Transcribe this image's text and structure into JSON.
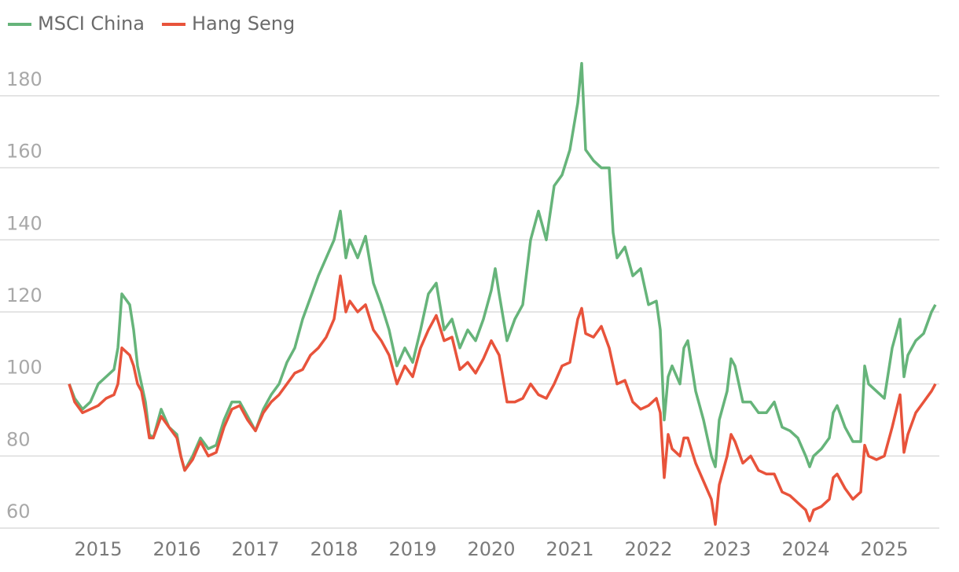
{
  "chart_data": {
    "type": "line",
    "x": [
      2014.63,
      2014.7,
      2014.8,
      2014.9,
      2015.0,
      2015.1,
      2015.2,
      2015.25,
      2015.3,
      2015.4,
      2015.45,
      2015.5,
      2015.55,
      2015.6,
      2015.65,
      2015.7,
      2015.8,
      2015.9,
      2016.0,
      2016.05,
      2016.1,
      2016.2,
      2016.3,
      2016.4,
      2016.5,
      2016.6,
      2016.7,
      2016.8,
      2016.9,
      2017.0,
      2017.1,
      2017.2,
      2017.3,
      2017.4,
      2017.5,
      2017.6,
      2017.7,
      2017.8,
      2017.9,
      2018.0,
      2018.08,
      2018.15,
      2018.2,
      2018.3,
      2018.4,
      2018.5,
      2018.6,
      2018.7,
      2018.8,
      2018.9,
      2019.0,
      2019.1,
      2019.2,
      2019.3,
      2019.4,
      2019.5,
      2019.6,
      2019.7,
      2019.8,
      2019.9,
      2020.0,
      2020.05,
      2020.1,
      2020.2,
      2020.3,
      2020.4,
      2020.5,
      2020.6,
      2020.7,
      2020.8,
      2020.9,
      2021.0,
      2021.1,
      2021.15,
      2021.2,
      2021.3,
      2021.4,
      2021.5,
      2021.55,
      2021.6,
      2021.7,
      2021.8,
      2021.9,
      2022.0,
      2022.1,
      2022.15,
      2022.2,
      2022.25,
      2022.3,
      2022.4,
      2022.45,
      2022.5,
      2022.6,
      2022.7,
      2022.8,
      2022.85,
      2022.9,
      2023.0,
      2023.05,
      2023.1,
      2023.2,
      2023.3,
      2023.4,
      2023.5,
      2023.6,
      2023.7,
      2023.8,
      2023.9,
      2024.0,
      2024.05,
      2024.1,
      2024.2,
      2024.3,
      2024.35,
      2024.4,
      2024.5,
      2024.6,
      2024.7,
      2024.75,
      2024.8,
      2024.9,
      2025.0,
      2025.1,
      2025.2,
      2025.25,
      2025.3,
      2025.4,
      2025.5,
      2025.6,
      2025.65
    ],
    "series": [
      {
        "name": "MSCI China",
        "color": "#66b47a",
        "values": [
          100,
          96,
          93,
          95,
          100,
          102,
          104,
          110,
          125,
          122,
          115,
          105,
          100,
          95,
          86,
          85,
          93,
          88,
          86,
          80,
          76,
          80,
          85,
          82,
          83,
          90,
          95,
          95,
          91,
          87,
          93,
          97,
          100,
          106,
          110,
          118,
          124,
          130,
          135,
          140,
          148,
          135,
          140,
          135,
          141,
          128,
          122,
          115,
          105,
          110,
          106,
          115,
          125,
          128,
          115,
          118,
          110,
          115,
          112,
          118,
          126,
          132,
          125,
          112,
          118,
          122,
          140,
          148,
          140,
          155,
          158,
          165,
          178,
          189,
          165,
          162,
          160,
          160,
          142,
          135,
          138,
          130,
          132,
          122,
          123,
          115,
          90,
          102,
          105,
          100,
          110,
          112,
          98,
          90,
          80,
          77,
          90,
          98,
          107,
          105,
          95,
          95,
          92,
          92,
          95,
          88,
          87,
          85,
          80,
          77,
          80,
          82,
          85,
          92,
          94,
          88,
          84,
          84,
          105,
          100,
          98,
          96,
          110,
          118,
          102,
          108,
          112,
          114,
          120,
          122
        ]
      },
      {
        "name": "Hang Seng",
        "color": "#e8533b",
        "values": [
          100,
          95,
          92,
          93,
          94,
          96,
          97,
          100,
          110,
          108,
          105,
          100,
          98,
          92,
          85,
          85,
          91,
          88,
          85,
          80,
          76,
          79,
          84,
          80,
          81,
          88,
          93,
          94,
          90,
          87,
          92,
          95,
          97,
          100,
          103,
          104,
          108,
          110,
          113,
          118,
          130,
          120,
          123,
          120,
          122,
          115,
          112,
          108,
          100,
          105,
          102,
          110,
          115,
          119,
          112,
          113,
          104,
          106,
          103,
          107,
          112,
          110,
          108,
          95,
          95,
          96,
          100,
          97,
          96,
          100,
          105,
          106,
          118,
          121,
          114,
          113,
          116,
          110,
          105,
          100,
          101,
          95,
          93,
          94,
          96,
          92,
          74,
          86,
          82,
          80,
          85,
          85,
          78,
          73,
          68,
          61,
          72,
          80,
          86,
          84,
          78,
          80,
          76,
          75,
          75,
          70,
          69,
          67,
          65,
          62,
          65,
          66,
          68,
          74,
          75,
          71,
          68,
          70,
          83,
          80,
          79,
          80,
          88,
          97,
          81,
          86,
          92,
          95,
          98,
          100
        ]
      }
    ],
    "xlim": [
      2014.5,
      2025.8
    ],
    "xticks": [
      2015,
      2016,
      2017,
      2018,
      2019,
      2020,
      2021,
      2022,
      2023,
      2024,
      2025
    ],
    "ylim": [
      55,
      190
    ],
    "yticks": [
      60,
      80,
      100,
      120,
      140,
      160,
      180
    ],
    "grid": true,
    "legend": "top-left"
  }
}
